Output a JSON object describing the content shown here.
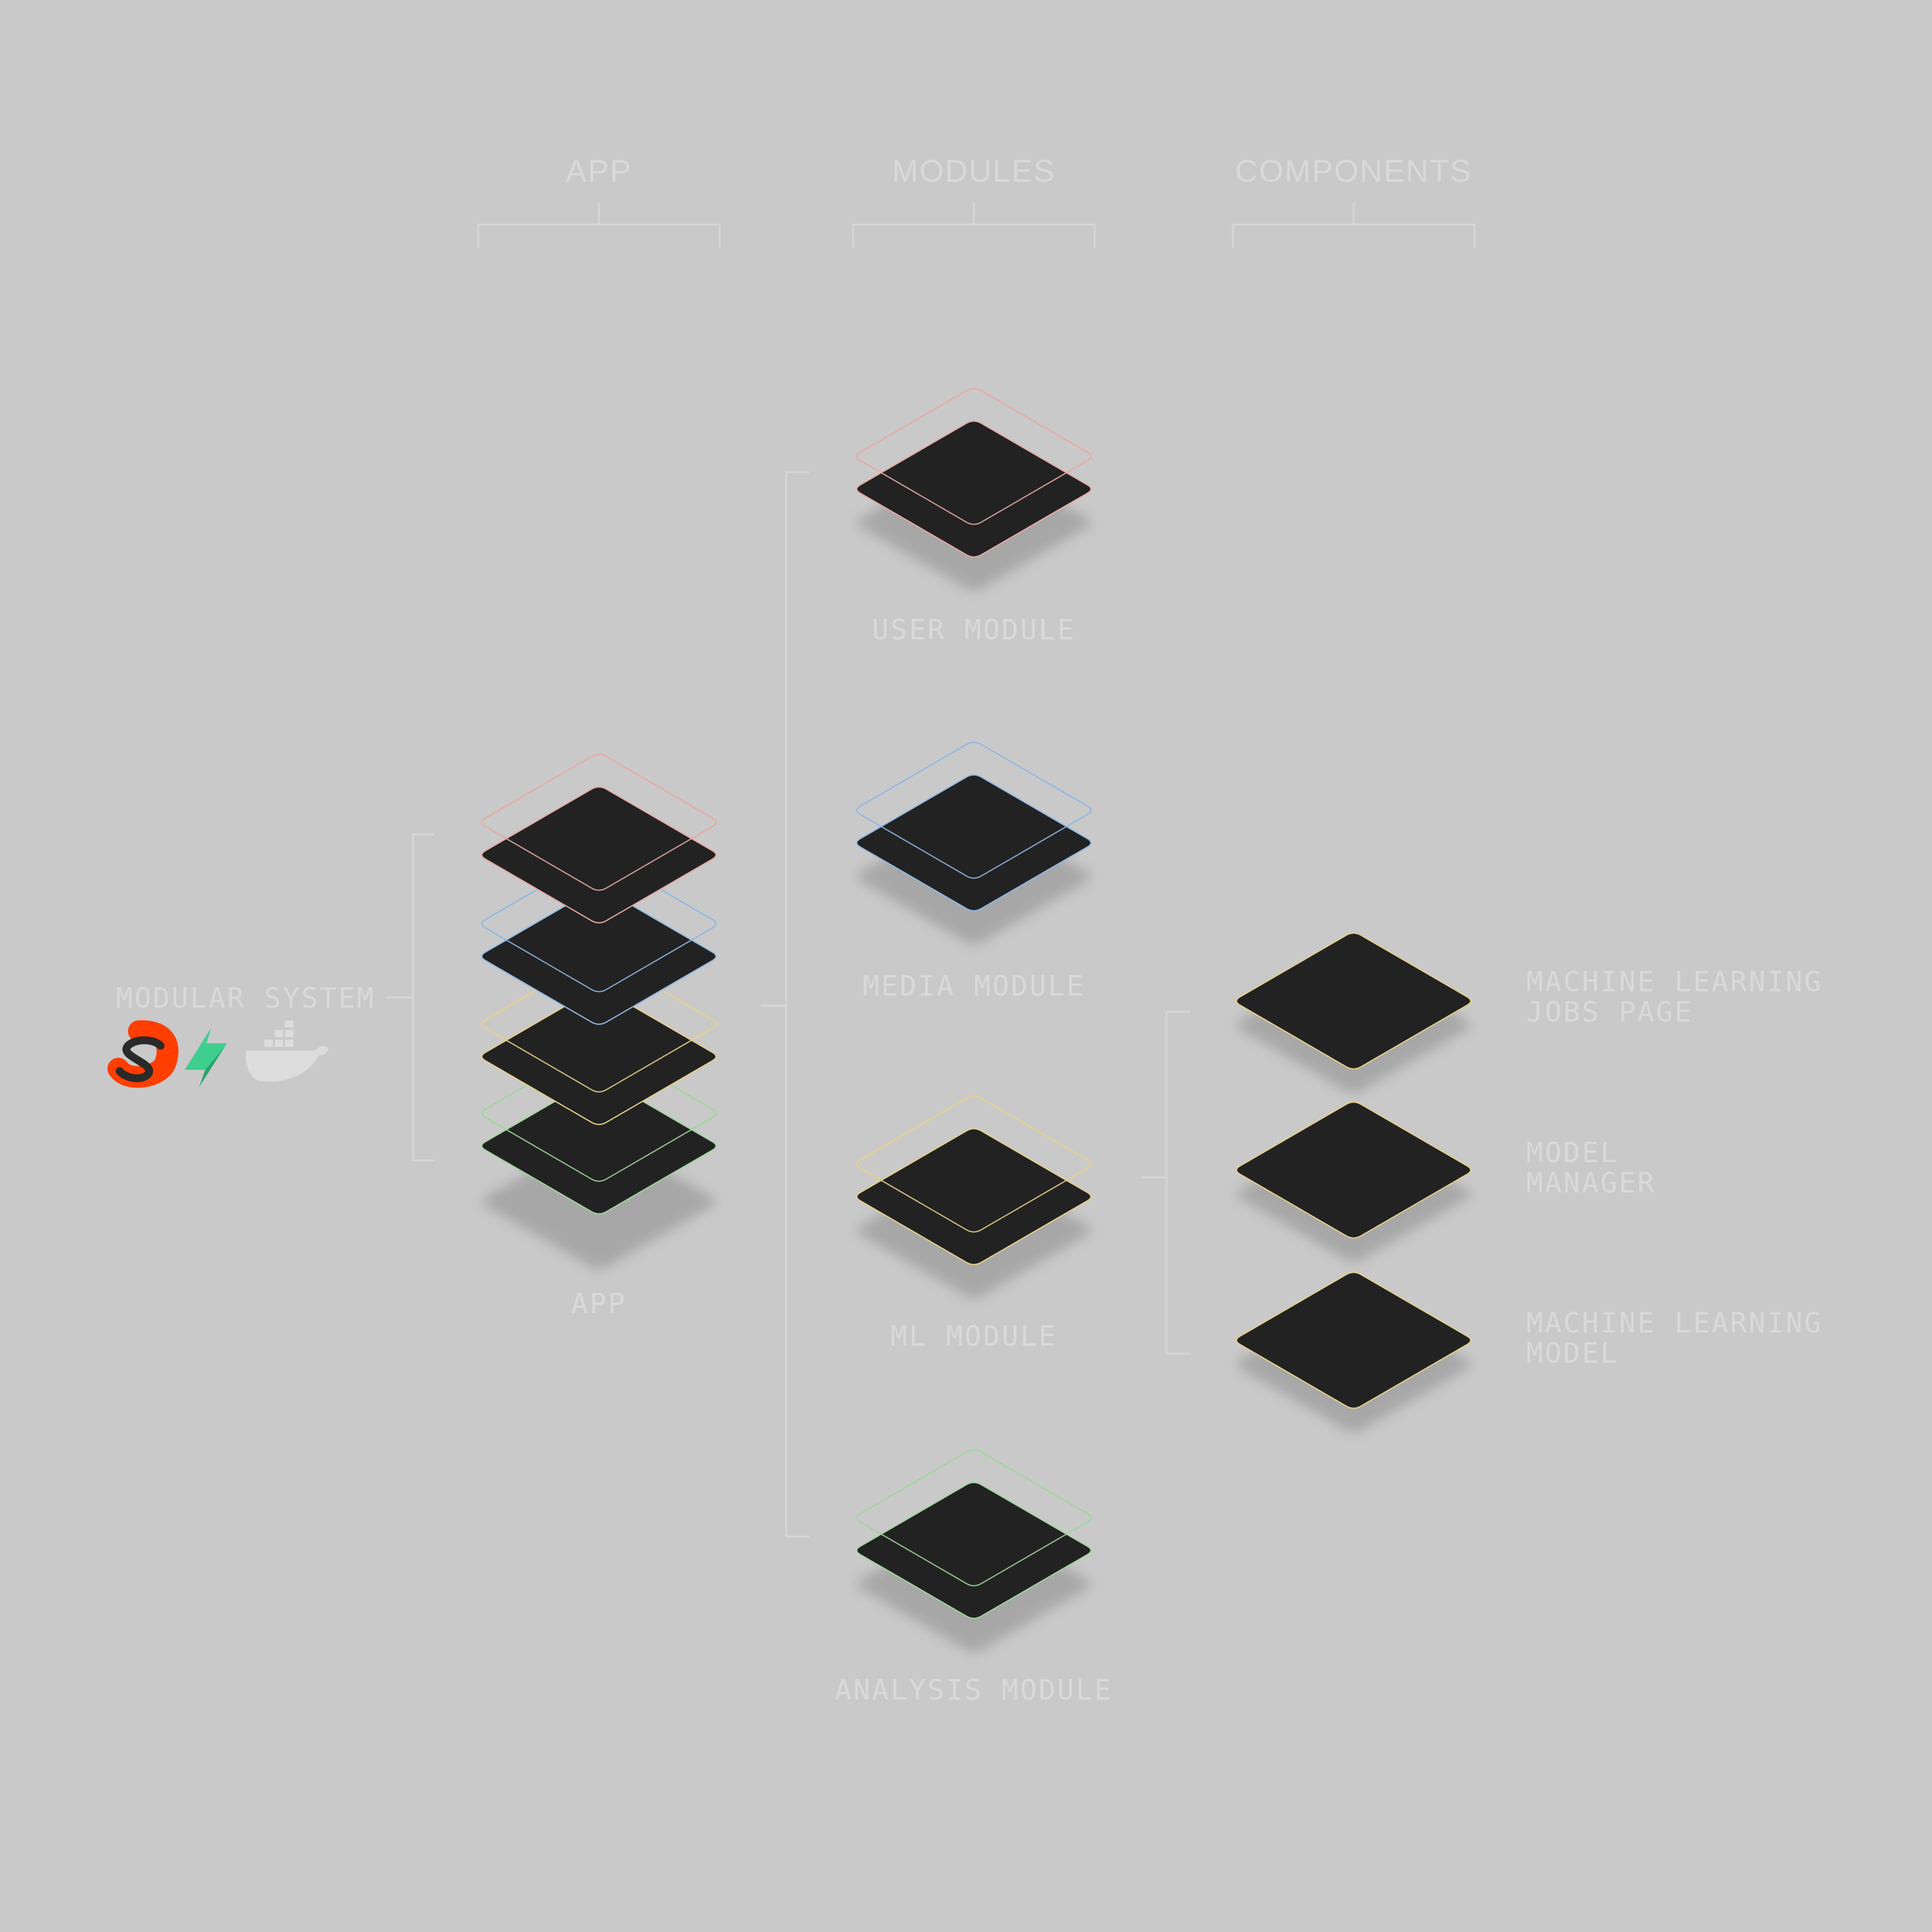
{
  "headers": {
    "app": "APP",
    "modules": "MODULES",
    "components": "COMPONENTS"
  },
  "labels": {
    "modular_system": "MODULAR SYSTEM",
    "app": "APP",
    "user_module": "USER MODULE",
    "media_module": "MEDIA MODULE",
    "ml_module": "ML MODULE",
    "analysis_module": "ANALYSIS MODULE",
    "ml_jobs_page": [
      "MACHINE LEARNING",
      "JOBS PAGE"
    ],
    "model_manager": [
      "MODEL",
      "MANAGER"
    ],
    "ml_model": [
      "MACHINE LEARNING",
      "MODEL"
    ]
  },
  "colors": {
    "background": "#c9c9c9",
    "tile": "#222222",
    "text": "#d9d9d9",
    "connector": "#d6d6d6",
    "user": "#e8a8a4",
    "media": "#8fb8e6",
    "ml": "#e6cf8a",
    "analysis": "#9fd69a"
  },
  "icons": [
    "svelte-icon",
    "supabase-icon",
    "docker-icon"
  ]
}
